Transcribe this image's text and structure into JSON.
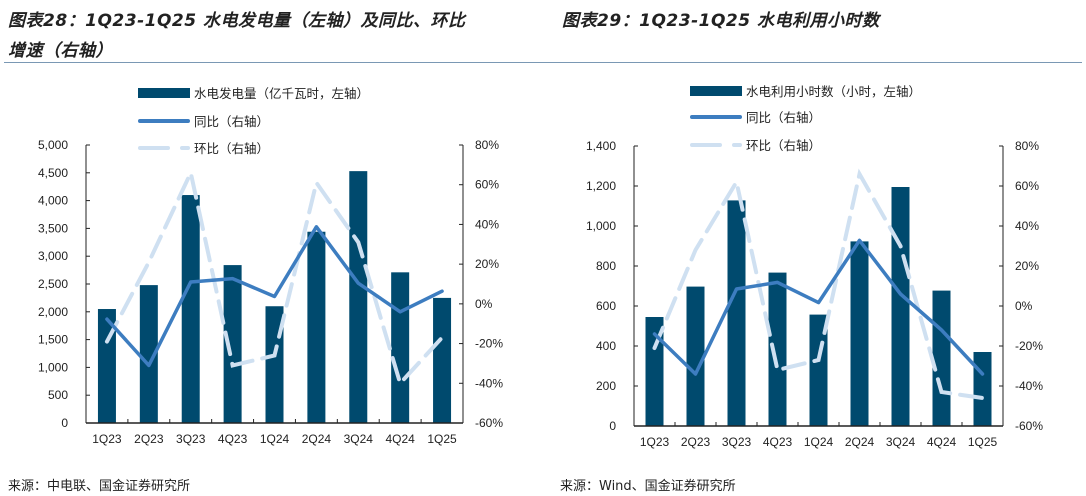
{
  "left_title_line1": "图表28：1Q23-1Q25 水电发电量（左轴）及同比、环比",
  "left_title_line2": "增速（右轴）",
  "right_title": "图表29：1Q23-1Q25 水电利用小时数",
  "left_source": "来源：中电联、国金证券研究所",
  "right_source": "来源：Wind、国金证券研究所",
  "colors": {
    "bar": "#004a6e",
    "yoy": "#3d7dc0",
    "qoq": "#cfe0f1",
    "rule": "#7a98b4"
  },
  "chart_data": [
    {
      "type": "bar+line",
      "categories": [
        "1Q23",
        "2Q23",
        "3Q23",
        "4Q23",
        "1Q24",
        "2Q24",
        "3Q24",
        "4Q24",
        "1Q25"
      ],
      "ylim": [
        0,
        5000
      ],
      "yticks": [
        "0",
        "500",
        "1,000",
        "1,500",
        "2,000",
        "2,500",
        "3,000",
        "3,500",
        "4,000",
        "4,500",
        "5,000"
      ],
      "y2lim": [
        -60,
        80
      ],
      "y2ticks": [
        "-60%",
        "-40%",
        "-20%",
        "0%",
        "20%",
        "40%",
        "60%",
        "80%"
      ],
      "legend_placement": "top",
      "grid": false,
      "series": [
        {
          "name": "水电发电量（亿千瓦时，左轴）",
          "kind": "bar",
          "axis": "left",
          "values": [
            2050,
            2480,
            4100,
            2840,
            2100,
            3440,
            4530,
            2710,
            2250
          ]
        },
        {
          "name": "同比（右轴）",
          "kind": "line",
          "axis": "right",
          "values": [
            -7.7,
            -31,
            11,
            12.7,
            3.7,
            38.8,
            10.4,
            -4,
            6.4
          ]
        },
        {
          "name": "环比（右轴）",
          "kind": "dashed-line",
          "axis": "right",
          "values": [
            -19,
            21,
            66,
            -31,
            -26,
            61,
            31,
            -40,
            -17
          ]
        }
      ]
    },
    {
      "type": "bar+line",
      "categories": [
        "1Q23",
        "2Q23",
        "3Q23",
        "4Q23",
        "1Q24",
        "2Q24",
        "3Q24",
        "4Q24",
        "1Q25"
      ],
      "ylim": [
        0,
        1400
      ],
      "yticks": [
        "0",
        "200",
        "400",
        "600",
        "800",
        "1,000",
        "1,200",
        "1,400"
      ],
      "y2lim": [
        -60,
        80
      ],
      "y2ticks": [
        "-60%",
        "-40%",
        "-20%",
        "0%",
        "20%",
        "40%",
        "60%",
        "80%"
      ],
      "legend_placement": "top",
      "grid": false,
      "series": [
        {
          "name": "水电利用小时数（小时，左轴）",
          "kind": "bar",
          "axis": "left",
          "values": [
            545,
            697,
            1128,
            767,
            557,
            923,
            1195,
            677,
            370
          ]
        },
        {
          "name": "同比（右轴）",
          "kind": "line",
          "axis": "right",
          "values": [
            -14,
            -34,
            8.5,
            11.8,
            1.7,
            32.8,
            6,
            -12,
            -34
          ]
        },
        {
          "name": "环比（右轴）",
          "kind": "dashed-line",
          "axis": "right",
          "values": [
            -21,
            28,
            62,
            -32,
            -27,
            66,
            30,
            -43,
            -46
          ]
        }
      ]
    }
  ]
}
